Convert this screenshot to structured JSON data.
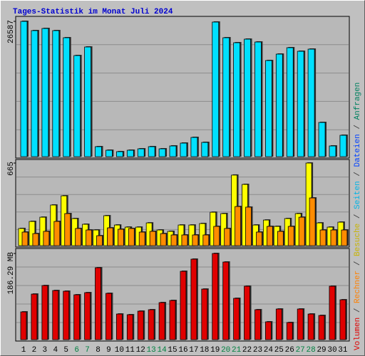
{
  "legend_separator": " / ",
  "legend": [
    {
      "name": "Volumen",
      "color": "#e00000"
    },
    {
      "name": "Rechner",
      "color": "#ff8000"
    },
    {
      "name": "Besuche",
      "color": "#c8b400"
    },
    {
      "name": "Seiten",
      "color": "#00b4e6"
    },
    {
      "name": "Dateien",
      "color": "#0040ff"
    },
    {
      "name": "Anfragen",
      "color": "#008060"
    }
  ],
  "chart_data": [
    {
      "type": "bar",
      "title": "Tages-Statistik im Monat Juli 2024",
      "series": [
        {
          "color": "#00e0ff",
          "values": [
            26587,
            24770,
            25190,
            24770,
            23370,
            19870,
            21550,
            1960,
            1260,
            980,
            1260,
            1540,
            1960,
            1540,
            2100,
            2660,
            3780,
            2800,
            26450,
            23370,
            22390,
            23090,
            22530,
            18890,
            20150,
            21410,
            20710,
            21130,
            6720,
            2100,
            4200
          ]
        }
      ],
      "ylim": [
        0,
        26587
      ],
      "yticks": [
        26587
      ],
      "grid": true
    },
    {
      "type": "bar",
      "series": [
        {
          "color": "#ffff00",
          "values": [
            138,
            195,
            229,
            327,
            401,
            218,
            172,
            126,
            241,
            166,
            149,
            149,
            183,
            126,
            115,
            166,
            166,
            178,
            269,
            258,
            568,
            493,
            166,
            206,
            155,
            218,
            258,
            665,
            183,
            149,
            189
          ]
        },
        {
          "color": "#ff8c00",
          "values": [
            109,
            97,
            115,
            195,
            258,
            138,
            126,
            80,
            143,
            132,
            138,
            109,
            115,
            97,
            86,
            86,
            86,
            86,
            155,
            138,
            315,
            310,
            109,
            155,
            115,
            155,
            229,
            384,
            126,
            126,
            126
          ]
        }
      ],
      "ylim": [
        0,
        665
      ],
      "yticks": [
        665
      ],
      "grid": true
    },
    {
      "type": "bar",
      "categories": [
        "1",
        "2",
        "3",
        "4",
        "5",
        "6",
        "7",
        "8",
        "9",
        "10",
        "11",
        "12",
        "13",
        "14",
        "15",
        "16",
        "17",
        "18",
        "19",
        "20",
        "21",
        "22",
        "23",
        "24",
        "25",
        "26",
        "27",
        "28",
        "29",
        "30",
        "31"
      ],
      "category_colors": [
        "#000000",
        "#000000",
        "#000000",
        "#000000",
        "#000000",
        "#008040",
        "#008040",
        "#000000",
        "#000000",
        "#000000",
        "#000000",
        "#000000",
        "#008040",
        "#008040",
        "#000000",
        "#000000",
        "#000000",
        "#000000",
        "#000000",
        "#008040",
        "#008040",
        "#000000",
        "#000000",
        "#000000",
        "#000000",
        "#000000",
        "#008040",
        "#008040",
        "#000000",
        "#000000",
        "#000000"
      ],
      "series": [
        {
          "color": "#e00000",
          "values": [
            60.0,
            98.5,
            117.0,
            106.2,
            104.7,
            97.0,
            101.6,
            155.5,
            100.1,
            55.4,
            53.9,
            61.6,
            64.7,
            80.1,
            84.7,
            147.8,
            174.0,
            109.3,
            186.29,
            167.8,
            89.3,
            115.5,
            64.7,
            38.5,
            66.2,
            37.0,
            66.2,
            55.4,
            52.3,
            115.5,
            86.2
          ]
        }
      ],
      "ylim": [
        0,
        186.29
      ],
      "yticks": [
        {
          "value": 186.29,
          "label": "186.29 MB"
        }
      ],
      "grid": true
    }
  ]
}
